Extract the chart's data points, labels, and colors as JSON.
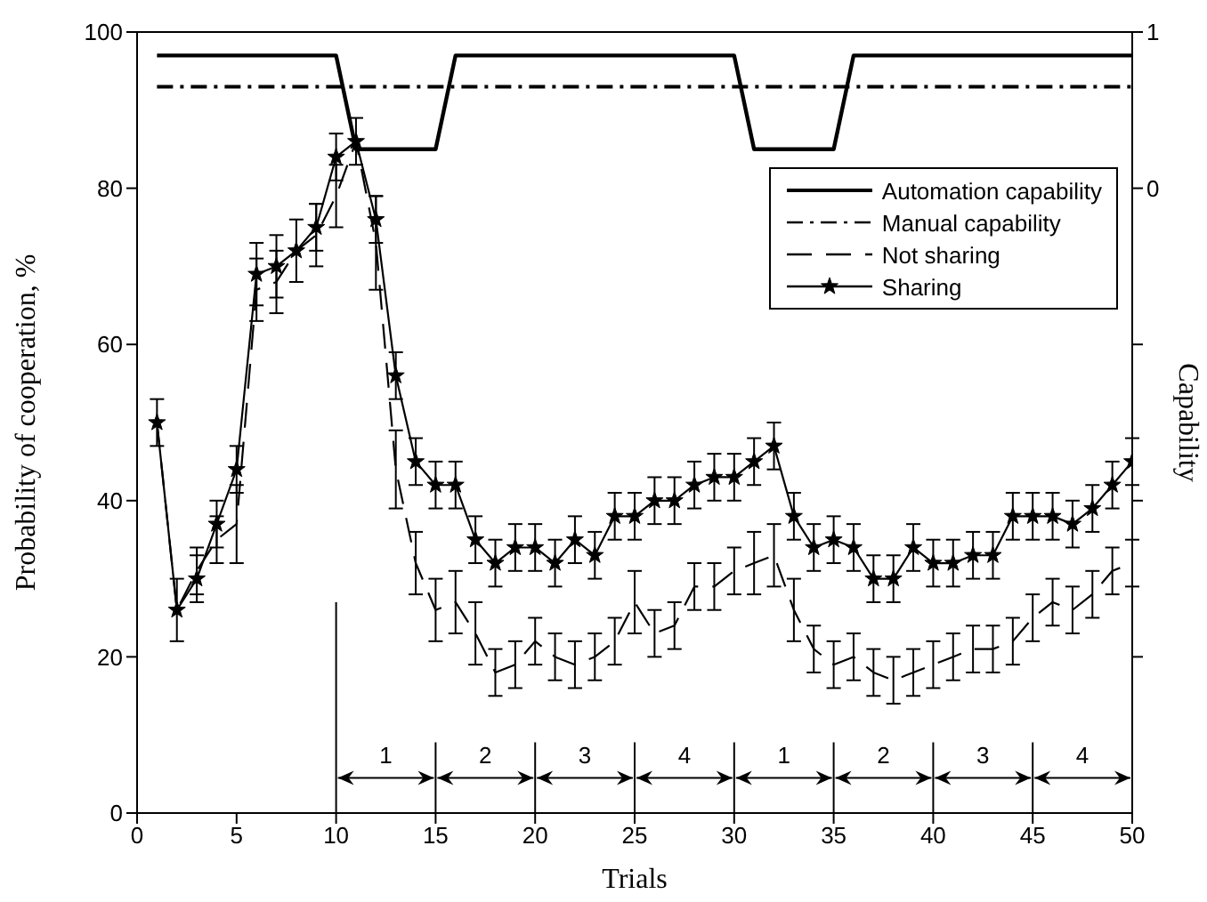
{
  "chart_data": {
    "type": "line",
    "xlabel": "Trials",
    "ylabel": "Probability of cooperation, %",
    "y2label": "Capability",
    "xlim": [
      0,
      50
    ],
    "xticks": [
      0,
      5,
      10,
      15,
      20,
      25,
      30,
      35,
      40,
      45,
      50
    ],
    "ylim": [
      0,
      100
    ],
    "yticks": [
      0,
      20,
      40,
      60,
      80,
      100
    ],
    "y2lim": [
      -4,
      1
    ],
    "y2ticks": [
      1,
      0,
      {
        "value": -1,
        "label": null
      },
      {
        "value": -2,
        "label": null
      },
      {
        "value": -3,
        "label": null
      }
    ],
    "grid": false,
    "legend": "top right",
    "series": [
      {
        "name": "Automation capability",
        "color": "#000000",
        "axis": "y2",
        "line_style": "solid",
        "marker": "none",
        "x": [
          1,
          10,
          11,
          15,
          16,
          30,
          31,
          35,
          36,
          50
        ],
        "values": [
          0.85,
          0.85,
          0.25,
          0.25,
          0.85,
          0.85,
          0.25,
          0.25,
          0.85,
          0.85
        ]
      },
      {
        "name": "Manual capability",
        "color": "#000000",
        "axis": "y2",
        "line_style": "dashdot",
        "marker": "none",
        "x": [
          1,
          50
        ],
        "values": [
          0.65,
          0.65
        ]
      },
      {
        "name": "Not sharing",
        "color": "#000000",
        "axis": "y",
        "line_style": "dashed",
        "marker": "none",
        "x": [
          1,
          2,
          3,
          4,
          5,
          6,
          7,
          8,
          9,
          10,
          11,
          12,
          13,
          14,
          15,
          16,
          17,
          18,
          19,
          20,
          21,
          22,
          23,
          24,
          25,
          26,
          27,
          28,
          29,
          30,
          31,
          32,
          33,
          34,
          35,
          36,
          37,
          38,
          39,
          40,
          41,
          42,
          43,
          44,
          45,
          46,
          47,
          48,
          49,
          50
        ],
        "values": [
          50,
          26,
          31,
          35,
          37,
          67,
          68,
          72,
          74,
          79,
          86,
          73,
          44,
          32,
          26,
          27,
          23,
          18,
          19,
          22,
          20,
          19,
          20,
          22,
          27,
          23,
          24,
          29,
          29,
          31,
          32,
          33,
          26,
          21,
          19,
          20,
          18,
          17,
          18,
          19,
          20,
          21,
          21,
          22,
          25,
          27,
          26,
          28,
          31,
          32
        ],
        "errors": [
          null,
          null,
          3,
          3,
          5,
          4,
          4,
          null,
          4,
          4,
          null,
          6,
          5,
          4,
          4,
          4,
          4,
          3,
          3,
          3,
          3,
          3,
          3,
          3,
          4,
          3,
          3,
          3,
          3,
          3,
          4,
          4,
          4,
          3,
          3,
          3,
          3,
          3,
          3,
          3,
          3,
          3,
          3,
          3,
          3,
          3,
          3,
          3,
          3,
          3
        ]
      },
      {
        "name": "Sharing",
        "color": "#000000",
        "axis": "y",
        "line_style": "solid",
        "marker": "star",
        "x": [
          1,
          2,
          3,
          4,
          5,
          6,
          7,
          8,
          9,
          10,
          11,
          12,
          13,
          14,
          15,
          16,
          17,
          18,
          19,
          20,
          21,
          22,
          23,
          24,
          25,
          26,
          27,
          28,
          29,
          30,
          31,
          32,
          33,
          34,
          35,
          36,
          37,
          38,
          39,
          40,
          41,
          42,
          43,
          44,
          45,
          46,
          47,
          48,
          49,
          50
        ],
        "values": [
          50,
          26,
          30,
          37,
          44,
          69,
          70,
          72,
          75,
          84,
          86,
          76,
          56,
          45,
          42,
          42,
          35,
          32,
          34,
          34,
          32,
          35,
          33,
          38,
          38,
          40,
          40,
          42,
          43,
          43,
          45,
          47,
          38,
          34,
          35,
          34,
          30,
          30,
          34,
          32,
          32,
          33,
          33,
          38,
          38,
          38,
          37,
          39,
          42,
          45
        ],
        "errors": [
          3,
          4,
          3,
          3,
          3,
          4,
          4,
          4,
          3,
          3,
          3,
          3,
          3,
          3,
          3,
          3,
          3,
          3,
          3,
          3,
          3,
          3,
          3,
          3,
          3,
          3,
          3,
          3,
          3,
          3,
          3,
          3,
          3,
          3,
          3,
          3,
          3,
          3,
          3,
          3,
          3,
          3,
          3,
          3,
          3,
          3,
          3,
          3,
          3,
          3
        ]
      }
    ],
    "ref_lines": [
      {
        "axis": "x",
        "value": 10
      },
      {
        "axis": "x",
        "value": 15
      },
      {
        "axis": "x",
        "value": 20
      },
      {
        "axis": "x",
        "value": 25
      },
      {
        "axis": "x",
        "value": 30
      },
      {
        "axis": "x",
        "value": 35
      },
      {
        "axis": "x",
        "value": 40
      },
      {
        "axis": "x",
        "value": 45
      }
    ],
    "annotations": [
      "1",
      "2",
      "3",
      "4",
      "1",
      "2",
      "3",
      "4"
    ]
  }
}
